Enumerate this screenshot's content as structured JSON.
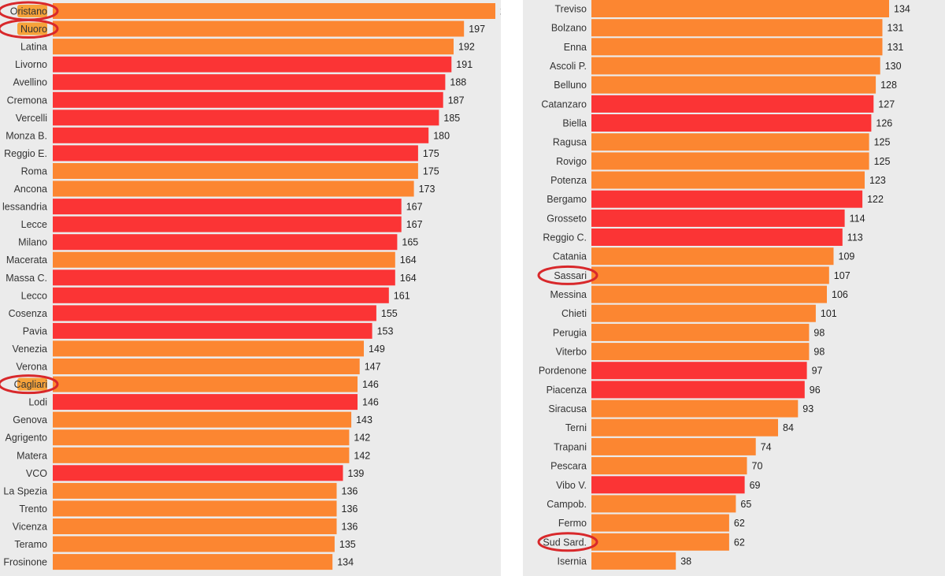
{
  "chart_data": [
    {
      "type": "bar",
      "orientation": "horizontal",
      "categories": [
        "Oristano",
        "Nuoro",
        "Latina",
        "Livorno",
        "Avellino",
        "Cremona",
        "Vercelli",
        "Monza B.",
        "Reggio E.",
        "Roma",
        "Ancona",
        "lessandria",
        "Lecce",
        "Milano",
        "Macerata",
        "Massa C.",
        "Lecco",
        "Cosenza",
        "Pavia",
        "Venezia",
        "Verona",
        "Cagliari",
        "Lodi",
        "Genova",
        "Agrigento",
        "Matera",
        "VCO",
        "La Spezia",
        "Trento",
        "Vicenza",
        "Teramo",
        "Frosinone"
      ],
      "values": [
        212,
        197,
        192,
        191,
        188,
        187,
        185,
        180,
        175,
        175,
        173,
        167,
        167,
        165,
        164,
        164,
        161,
        155,
        153,
        149,
        147,
        146,
        146,
        143,
        142,
        142,
        139,
        136,
        136,
        136,
        135,
        134
      ],
      "bar_colors": [
        "orange",
        "orange",
        "orange",
        "red",
        "red",
        "red",
        "red",
        "red",
        "red",
        "orange",
        "orange",
        "red",
        "red",
        "red",
        "orange",
        "red",
        "red",
        "red",
        "red",
        "orange",
        "orange",
        "orange",
        "red",
        "orange",
        "orange",
        "orange",
        "red",
        "orange",
        "orange",
        "orange",
        "orange",
        "orange"
      ],
      "circled": [
        "Oristano",
        "Nuoro",
        "Cagliari"
      ],
      "xlim": [
        0,
        212
      ]
    },
    {
      "type": "bar",
      "orientation": "horizontal",
      "categories": [
        "Treviso",
        "Bolzano",
        "Enna",
        "Ascoli P.",
        "Belluno",
        "Catanzaro",
        "Biella",
        "Ragusa",
        "Rovigo",
        "Potenza",
        "Bergamo",
        "Grosseto",
        "Reggio C.",
        "Catania",
        "Sassari",
        "Messina",
        "Chieti",
        "Perugia",
        "Viterbo",
        "Pordenone",
        "Piacenza",
        "Siracusa",
        "Terni",
        "Trapani",
        "Pescara",
        "Vibo V.",
        "Campob.",
        "Fermo",
        "Sud Sard.",
        "Isernia"
      ],
      "values": [
        134,
        131,
        131,
        130,
        128,
        127,
        126,
        125,
        125,
        123,
        122,
        114,
        113,
        109,
        107,
        106,
        101,
        98,
        98,
        97,
        96,
        93,
        84,
        74,
        70,
        69,
        65,
        62,
        62,
        38
      ],
      "bar_colors": [
        "orange",
        "orange",
        "orange",
        "orange",
        "orange",
        "red",
        "red",
        "orange",
        "orange",
        "orange",
        "red",
        "red",
        "red",
        "orange",
        "orange",
        "orange",
        "orange",
        "orange",
        "orange",
        "red",
        "red",
        "orange",
        "orange",
        "orange",
        "orange",
        "red",
        "orange",
        "orange",
        "orange",
        "orange"
      ],
      "circled": [
        "Sassari",
        "Sud Sard."
      ],
      "xlim": [
        0,
        134
      ]
    }
  ],
  "colors": {
    "orange": "#fc8631",
    "red": "#fb3435",
    "highlight": "#f6a23a",
    "circle": "#d8282b",
    "background": "#ebebeb"
  }
}
